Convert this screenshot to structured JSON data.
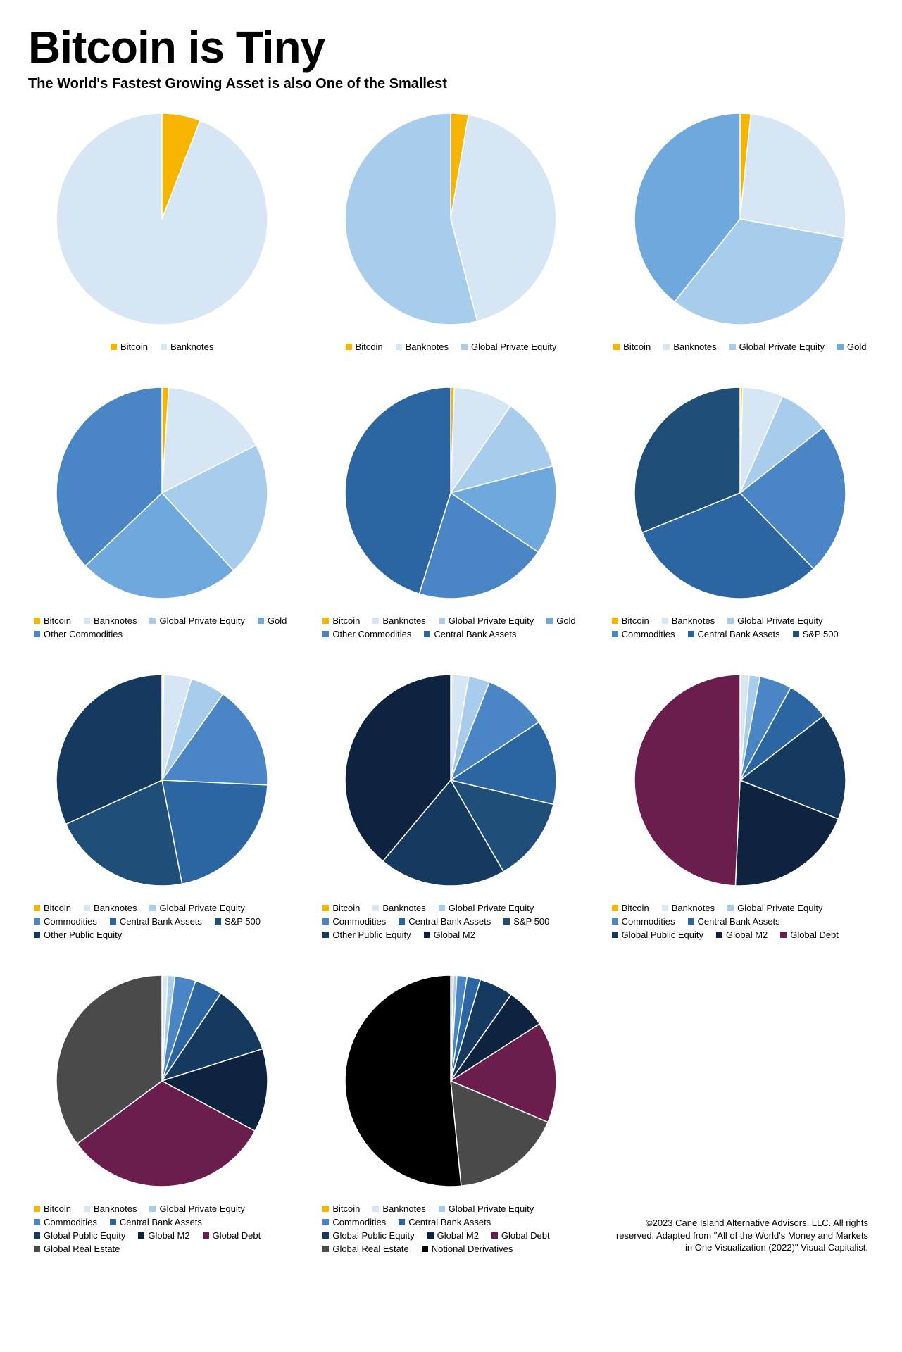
{
  "title": "Bitcoin is Tiny",
  "subtitle": "The World's Fastest Growing Asset is also One of the Smallest",
  "footer": "©2023 Cane Island Alternative Advisors, LLC. All rights reserved. Adapted from \"All of the World's Money and Markets in One Visualization (2022)\" Visual Capitalist.",
  "palette": {
    "Bitcoin": "#f7b500",
    "Banknotes": "#d6e6f5",
    "Global Private Equity": "#a8ccec",
    "Gold": "#6fa8dc",
    "Other Commodities": "#4a86c6",
    "Commodities": "#4a86c6",
    "Central Bank Assets": "#2b66a3",
    "S&P 500": "#1f4e79",
    "Other Public Equity": "#163a5f",
    "Global Public Equity": "#163a5f",
    "Global M2": "#0d2340",
    "Global Debt": "#6b1e4d",
    "Global Real Estate": "#4a4a4a",
    "Notional Derivatives": "#000000"
  },
  "pie_style": {
    "stroke": "#ffffff",
    "stroke_width": 1.5,
    "radius": 150
  },
  "charts": [
    {
      "legend_align": "center",
      "slices": [
        {
          "label": "Bitcoin",
          "value": 0.5
        },
        {
          "label": "Banknotes",
          "value": 8.0
        }
      ]
    },
    {
      "legend_align": "center",
      "slices": [
        {
          "label": "Bitcoin",
          "value": 0.5
        },
        {
          "label": "Banknotes",
          "value": 8.0
        },
        {
          "label": "Global Private Equity",
          "value": 10.0
        }
      ]
    },
    {
      "legend_align": "center",
      "slices": [
        {
          "label": "Bitcoin",
          "value": 0.5
        },
        {
          "label": "Banknotes",
          "value": 8.0
        },
        {
          "label": "Global Private Equity",
          "value": 10.0
        },
        {
          "label": "Gold",
          "value": 12.0
        }
      ]
    },
    {
      "legend_align": "left",
      "slices": [
        {
          "label": "Bitcoin",
          "value": 0.5
        },
        {
          "label": "Banknotes",
          "value": 8.0
        },
        {
          "label": "Global Private Equity",
          "value": 10.0
        },
        {
          "label": "Gold",
          "value": 12.0
        },
        {
          "label": "Other Commodities",
          "value": 18.0
        }
      ]
    },
    {
      "legend_align": "left",
      "slices": [
        {
          "label": "Bitcoin",
          "value": 0.5
        },
        {
          "label": "Banknotes",
          "value": 8.0
        },
        {
          "label": "Global Private Equity",
          "value": 10.0
        },
        {
          "label": "Gold",
          "value": 12.0
        },
        {
          "label": "Other Commodities",
          "value": 18.0
        },
        {
          "label": "Central Bank Assets",
          "value": 40.0
        }
      ]
    },
    {
      "legend_align": "left",
      "slices": [
        {
          "label": "Bitcoin",
          "value": 0.5
        },
        {
          "label": "Banknotes",
          "value": 8.0
        },
        {
          "label": "Global Private Equity",
          "value": 10.0
        },
        {
          "label": "Commodities",
          "value": 30.0
        },
        {
          "label": "Central Bank Assets",
          "value": 40.0
        },
        {
          "label": "S&P 500",
          "value": 40.0
        }
      ]
    },
    {
      "legend_align": "left",
      "slices": [
        {
          "label": "Bitcoin",
          "value": 0.5
        },
        {
          "label": "Banknotes",
          "value": 8.0
        },
        {
          "label": "Global Private Equity",
          "value": 10.0
        },
        {
          "label": "Commodities",
          "value": 30.0
        },
        {
          "label": "Central Bank Assets",
          "value": 40.0
        },
        {
          "label": "S&P 500",
          "value": 40.0
        },
        {
          "label": "Other Public Equity",
          "value": 60.0
        }
      ]
    },
    {
      "legend_align": "left",
      "slices": [
        {
          "label": "Bitcoin",
          "value": 0.5
        },
        {
          "label": "Banknotes",
          "value": 8.0
        },
        {
          "label": "Global Private Equity",
          "value": 10.0
        },
        {
          "label": "Commodities",
          "value": 30.0
        },
        {
          "label": "Central Bank Assets",
          "value": 40.0
        },
        {
          "label": "S&P 500",
          "value": 40.0
        },
        {
          "label": "Other Public Equity",
          "value": 60.0
        },
        {
          "label": "Global M2",
          "value": 120.0
        }
      ]
    },
    {
      "legend_align": "left",
      "slices": [
        {
          "label": "Bitcoin",
          "value": 0.5
        },
        {
          "label": "Banknotes",
          "value": 8.0
        },
        {
          "label": "Global Private Equity",
          "value": 10.0
        },
        {
          "label": "Commodities",
          "value": 30.0
        },
        {
          "label": "Central Bank Assets",
          "value": 40.0
        },
        {
          "label": "Global Public Equity",
          "value": 100.0
        },
        {
          "label": "Global M2",
          "value": 120.0
        },
        {
          "label": "Global Debt",
          "value": 300.0
        }
      ]
    },
    {
      "legend_align": "left",
      "slices": [
        {
          "label": "Bitcoin",
          "value": 0.5
        },
        {
          "label": "Banknotes",
          "value": 8.0
        },
        {
          "label": "Global Private Equity",
          "value": 10.0
        },
        {
          "label": "Commodities",
          "value": 30.0
        },
        {
          "label": "Central Bank Assets",
          "value": 40.0
        },
        {
          "label": "Global Public Equity",
          "value": 100.0
        },
        {
          "label": "Global M2",
          "value": 120.0
        },
        {
          "label": "Global Debt",
          "value": 300.0
        },
        {
          "label": "Global Real Estate",
          "value": 330.0
        }
      ]
    },
    {
      "legend_align": "left",
      "slices": [
        {
          "label": "Bitcoin",
          "value": 0.5
        },
        {
          "label": "Banknotes",
          "value": 8.0
        },
        {
          "label": "Global Private Equity",
          "value": 10.0
        },
        {
          "label": "Commodities",
          "value": 30.0
        },
        {
          "label": "Central Bank Assets",
          "value": 40.0
        },
        {
          "label": "Global Public Equity",
          "value": 100.0
        },
        {
          "label": "Global M2",
          "value": 120.0
        },
        {
          "label": "Global Debt",
          "value": 300.0
        },
        {
          "label": "Global Real Estate",
          "value": 330.0
        },
        {
          "label": "Notional Derivatives",
          "value": 1000.0
        }
      ]
    }
  ]
}
